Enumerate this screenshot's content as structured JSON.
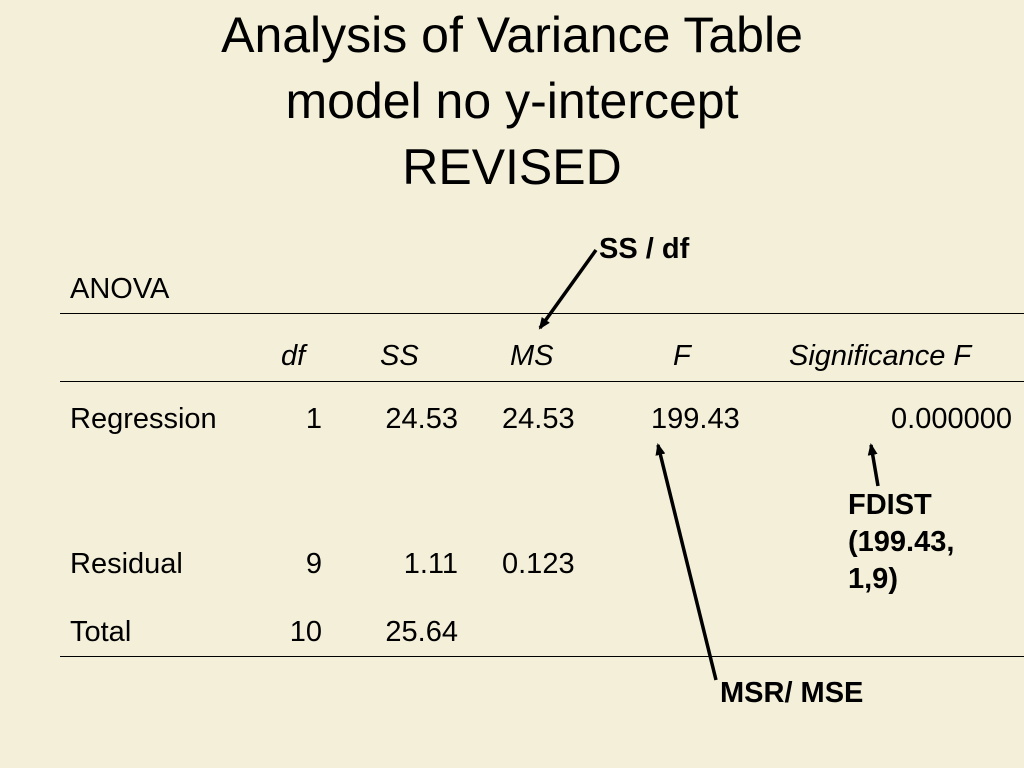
{
  "slide": {
    "title_lines": [
      "Analysis of Variance Table",
      "model no y-intercept",
      "REVISED"
    ]
  },
  "table": {
    "caption": "ANOVA",
    "headers": {
      "df": "df",
      "ss": "SS",
      "ms": "MS",
      "f": "F",
      "sig": "Significance F"
    },
    "rows": [
      {
        "label": "Regression",
        "df": "1",
        "ss": "24.53",
        "ms": "24.53",
        "f": "199.43",
        "sig": "0.000000"
      },
      {
        "label": "Residual",
        "df": "9",
        "ss": "1.11",
        "ms": "0.123",
        "f": "",
        "sig": ""
      },
      {
        "label": "Total",
        "df": "10",
        "ss": "25.64",
        "ms": "",
        "f": "",
        "sig": ""
      }
    ]
  },
  "annotations": {
    "ms_note": "SS / df",
    "fdist_lines": [
      "FDIST",
      "(199.43,",
      "1,9)"
    ],
    "f_note": "MSR/ MSE"
  }
}
